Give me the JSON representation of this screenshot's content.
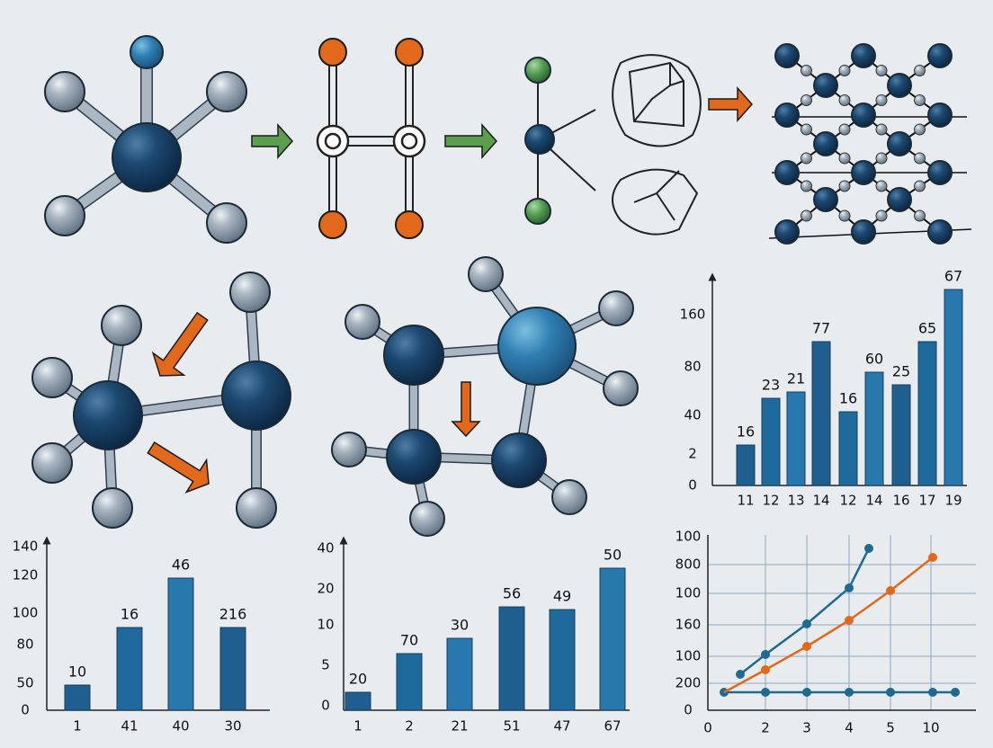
{
  "bar_charts": [
    {
      "y_labels": [
        "160",
        "80",
        "40",
        "2",
        "0"
      ],
      "bar_labels": [
        "16",
        "23",
        "21",
        "77",
        "16",
        "60",
        "25",
        "65",
        "67"
      ],
      "x_labels": [
        "11",
        "12",
        "13",
        "14",
        "12",
        "14",
        "16",
        "17",
        "19"
      ]
    },
    {
      "y_labels": [
        "140",
        "120",
        "100",
        "80",
        "50",
        "0"
      ],
      "bar_labels": [
        "10",
        "16",
        "46",
        "216"
      ],
      "x_labels": [
        "1",
        "41",
        "40",
        "30"
      ]
    },
    {
      "y_labels": [
        "40",
        "20",
        "10",
        "5",
        "0"
      ],
      "bar_labels": [
        "20",
        "70",
        "30",
        "56",
        "49",
        "50"
      ],
      "x_labels": [
        "1",
        "2",
        "21",
        "51",
        "47",
        "67"
      ]
    }
  ],
  "line_chart": {
    "y_labels": [
      "100",
      "800",
      "100",
      "160",
      "100",
      "200",
      "0"
    ],
    "x_labels": [
      "0",
      "2",
      "3",
      "4",
      "5",
      "10"
    ]
  }
}
